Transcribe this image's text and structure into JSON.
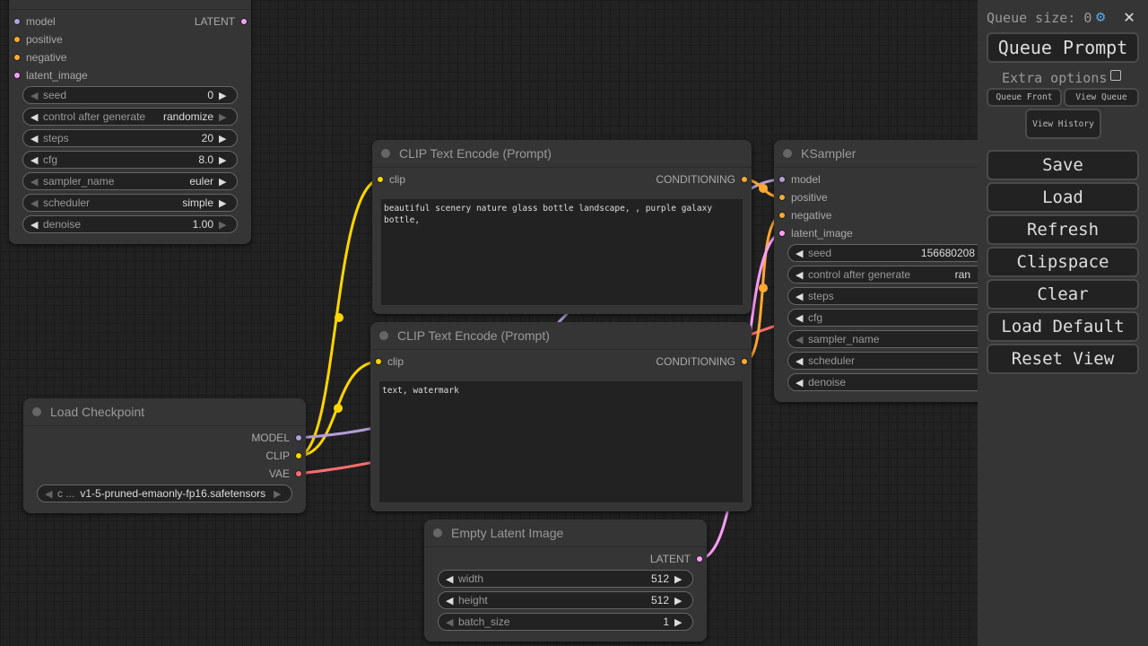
{
  "colors": {
    "clip": "#FFD500",
    "model": "#B39DDB",
    "conditioning": "#FFA931",
    "latent": "#FF9CF9",
    "vae": "#FF6E6E"
  },
  "ksampler_left": {
    "inputs": [
      "model",
      "positive",
      "negative",
      "latent_image"
    ],
    "output": "LATENT",
    "widgets": [
      {
        "label": "seed",
        "value": "0"
      },
      {
        "label": "control after generate",
        "value": "randomize"
      },
      {
        "label": "steps",
        "value": "20"
      },
      {
        "label": "cfg",
        "value": "8.0"
      },
      {
        "label": "sampler_name",
        "value": "euler"
      },
      {
        "label": "scheduler",
        "value": "simple"
      },
      {
        "label": "denoise",
        "value": "1.00"
      }
    ]
  },
  "clip_pos": {
    "title": "CLIP Text Encode (Prompt)",
    "input": "clip",
    "output": "CONDITIONING",
    "text": "beautiful scenery nature glass bottle landscape, , purple galaxy bottle,"
  },
  "clip_neg": {
    "title": "CLIP Text Encode (Prompt)",
    "input": "clip",
    "output": "CONDITIONING",
    "text": "text, watermark"
  },
  "checkpoint": {
    "title": "Load Checkpoint",
    "outputs": [
      "MODEL",
      "CLIP",
      "VAE"
    ],
    "widget_label": "c ...",
    "widget_value": "v1-5-pruned-emaonly-fp16.safetensors"
  },
  "latent": {
    "title": "Empty Latent Image",
    "output": "LATENT",
    "widgets": [
      {
        "label": "width",
        "value": "512"
      },
      {
        "label": "height",
        "value": "512"
      },
      {
        "label": "batch_size",
        "value": "1"
      }
    ]
  },
  "ksampler": {
    "title": "KSampler",
    "inputs": [
      "model",
      "positive",
      "negative",
      "latent_image"
    ],
    "widgets": [
      {
        "label": "seed",
        "value": "156680208"
      },
      {
        "label": "control after generate",
        "value": "ran"
      },
      {
        "label": "steps",
        "value": ""
      },
      {
        "label": "cfg",
        "value": ""
      },
      {
        "label": "sampler_name",
        "value": ""
      },
      {
        "label": "scheduler",
        "value": ""
      },
      {
        "label": "denoise",
        "value": ""
      }
    ]
  },
  "panel": {
    "queue_size": "Queue size: 0",
    "queue_prompt": "Queue Prompt",
    "extra_options": "Extra options",
    "queue_front": "Queue Front",
    "view_queue": "View Queue",
    "view_history": "View History",
    "buttons": [
      "Save",
      "Load",
      "Refresh",
      "Clipspace",
      "Clear",
      "Load Default",
      "Reset View"
    ]
  }
}
